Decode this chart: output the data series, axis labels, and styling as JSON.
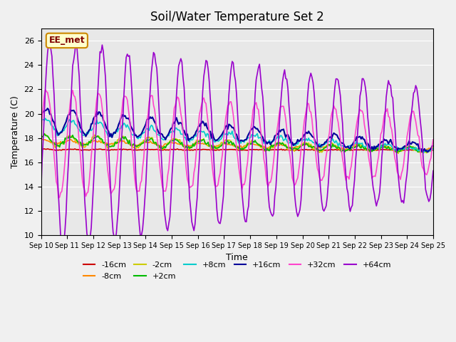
{
  "title": "Soil/Water Temperature Set 2",
  "xlabel": "Time",
  "ylabel": "Temperature (C)",
  "ylim": [
    10,
    27
  ],
  "xlim": [
    0,
    15
  ],
  "background_color": "#f0f0f0",
  "plot_bg": "#e8e8e8",
  "annotation": "EE_met",
  "x_tick_labels": [
    "Sep 10",
    "Sep 11",
    "Sep 12",
    "Sep 13",
    "Sep 14",
    "Sep 15",
    "Sep 16",
    "Sep 17",
    "Sep 18",
    "Sep 19",
    "Sep 20",
    "Sep 21",
    "Sep 22",
    "Sep 23",
    "Sep 24",
    "Sep 25"
  ],
  "series": [
    {
      "label": "-16cm",
      "color": "#cc0000",
      "linewidth": 1.2,
      "base": 17.05,
      "trend": -0.05,
      "amp_start": 0.03,
      "amp_end": 0.02,
      "phase": -0.5,
      "noise": 0.02
    },
    {
      "label": "-8cm",
      "color": "#ff8800",
      "linewidth": 1.2,
      "base": 17.7,
      "trend": -0.6,
      "amp_start": 0.15,
      "amp_end": 0.1,
      "phase": -1.0,
      "noise": 0.05
    },
    {
      "label": "-2cm",
      "color": "#cccc00",
      "linewidth": 1.2,
      "base": 17.8,
      "trend": -0.8,
      "amp_start": 0.5,
      "amp_end": 0.2,
      "phase": -0.8,
      "noise": 0.08
    },
    {
      "label": "+2cm",
      "color": "#00bb00",
      "linewidth": 1.2,
      "base": 17.8,
      "trend": -0.8,
      "amp_start": 0.4,
      "amp_end": 0.15,
      "phase": -0.7,
      "noise": 0.08
    },
    {
      "label": "+8cm",
      "color": "#00cccc",
      "linewidth": 1.2,
      "base": 19.0,
      "trend": -2.0,
      "amp_start": 0.6,
      "amp_end": 0.1,
      "phase": -0.5,
      "noise": 0.1
    },
    {
      "label": "+16cm",
      "color": "#000099",
      "linewidth": 1.5,
      "base": 19.5,
      "trend": -2.3,
      "amp_start": 1.0,
      "amp_end": 0.3,
      "phase": -0.3,
      "noise": 0.1
    },
    {
      "label": "+32cm",
      "color": "#ff44cc",
      "linewidth": 1.2,
      "base": 17.5,
      "trend": 0.0,
      "amp_start": 4.5,
      "amp_end": 2.5,
      "phase": -0.2,
      "noise": 0.15
    },
    {
      "label": "+64cm",
      "color": "#9900cc",
      "linewidth": 1.2,
      "base": 17.5,
      "trend": 0.0,
      "amp_start": 8.5,
      "amp_end": 4.5,
      "phase": 0.5,
      "noise": 0.2
    }
  ],
  "n_days": 15,
  "n_points": 360,
  "random_seed": 42,
  "yticks": [
    10,
    12,
    14,
    16,
    18,
    20,
    22,
    24,
    26
  ],
  "legend_colors": [
    "#cc0000",
    "#ff8800",
    "#cccc00",
    "#00bb00",
    "#00cccc",
    "#000099",
    "#ff44cc",
    "#9900cc"
  ],
  "legend_labels": [
    "-16cm",
    "-8cm",
    "-2cm",
    "+2cm",
    "+8cm",
    "+16cm",
    "+32cm",
    "+64cm"
  ]
}
